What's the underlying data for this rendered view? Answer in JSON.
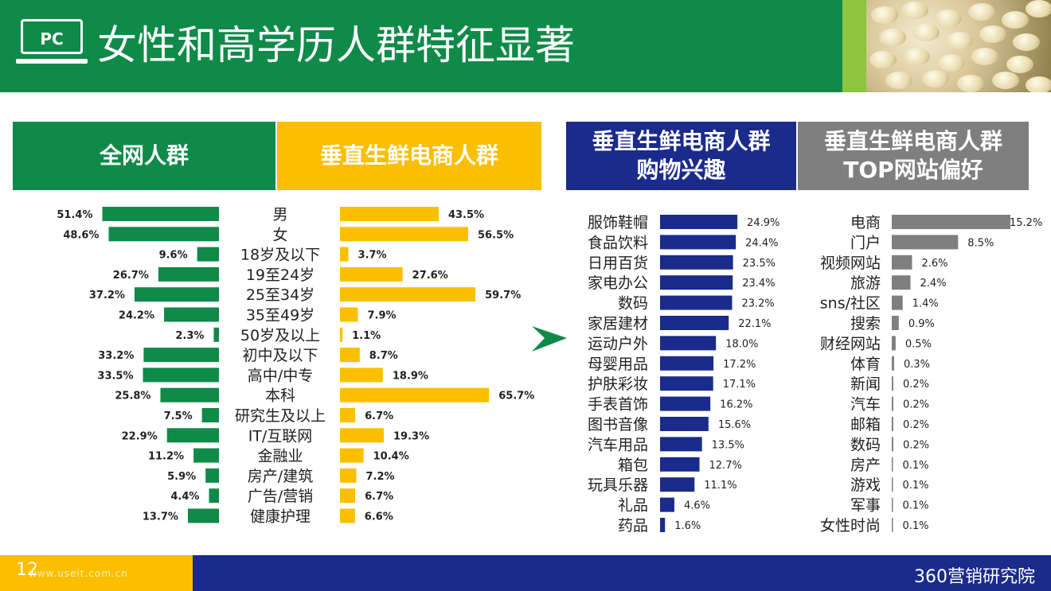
{
  "header": {
    "pc_label": "PC",
    "title": "女性和高学历人群特征显著"
  },
  "columns": {
    "all_net": "全网人群",
    "vertical_fresh": "垂直生鲜电商人群",
    "shopping_interest": "垂直生鲜电商人群\n购物兴趣",
    "top_sites": "垂直生鲜电商人群\nTOP网站偏好"
  },
  "colors": {
    "green": "#0f8a48",
    "yellow": "#fbbf00",
    "blue": "#1a2b8c",
    "gray": "#7f7f7f"
  },
  "chart_data": [
    {
      "type": "bar",
      "orientation": "horizontal",
      "categories": [
        "男",
        "女",
        "18岁及以下",
        "19至24岁",
        "25至34岁",
        "35至49岁",
        "50岁及以上",
        "初中及以下",
        "高中/中专",
        "本科",
        "研究生及以上",
        "IT/互联网",
        "金融业",
        "房产/建筑",
        "广告/营销",
        "健康护理"
      ],
      "series": [
        {
          "name": "全网人群",
          "values": [
            51.4,
            48.6,
            9.6,
            26.7,
            37.2,
            24.2,
            2.3,
            33.2,
            33.5,
            25.8,
            7.5,
            22.9,
            11.2,
            5.9,
            4.4,
            13.7
          ],
          "labels": [
            "51.4%",
            "48.6%",
            "9.6%",
            "26.7%",
            "37.2%",
            "24.2%",
            "2.3%",
            "33.2%",
            "33.5%",
            "25.8%",
            "7.5%",
            "22.9%",
            "11.2%",
            "5.9%",
            "4.4%",
            "13.7%"
          ]
        },
        {
          "name": "垂直生鲜电商人群",
          "values": [
            43.5,
            56.5,
            3.7,
            27.6,
            59.7,
            7.9,
            1.1,
            8.7,
            18.9,
            65.7,
            6.7,
            19.3,
            10.4,
            7.2,
            6.7,
            6.6
          ],
          "labels": [
            "43.5%",
            "56.5%",
            "3.7%",
            "27.6%",
            "59.7%",
            "7.9%",
            "1.1%",
            "8.7%",
            "18.9%",
            "65.7%",
            "6.7%",
            "19.3%",
            "10.4%",
            "7.2%",
            "6.7%",
            "6.6%"
          ]
        }
      ]
    },
    {
      "type": "bar",
      "orientation": "horizontal",
      "categories": [
        "服饰鞋帽",
        "食品饮料",
        "日用百货",
        "家电办公",
        "数码",
        "家居建材",
        "运动户外",
        "母婴用品",
        "护肤彩妆",
        "手表首饰",
        "图书音像",
        "汽车用品",
        "箱包",
        "玩具乐器",
        "礼品",
        "药品"
      ],
      "values": [
        24.9,
        24.4,
        23.5,
        23.4,
        23.2,
        22.1,
        18.0,
        17.2,
        17.1,
        16.2,
        15.6,
        13.5,
        12.7,
        11.1,
        4.6,
        1.6
      ],
      "labels": [
        "24.9%",
        "24.4%",
        "23.5%",
        "23.4%",
        "23.2%",
        "22.1%",
        "18.0%",
        "17.2%",
        "17.1%",
        "16.2%",
        "15.6%",
        "13.5%",
        "12.7%",
        "11.1%",
        "4.6%",
        "1.6%"
      ]
    },
    {
      "type": "bar",
      "orientation": "horizontal",
      "categories": [
        "电商",
        "门户",
        "视频网站",
        "旅游",
        "sns/社区",
        "搜索",
        "财经网站",
        "体育",
        "新闻",
        "汽车",
        "邮箱",
        "数码",
        "房产",
        "游戏",
        "军事",
        "女性时尚"
      ],
      "values": [
        15.2,
        8.5,
        2.6,
        2.4,
        1.4,
        0.9,
        0.5,
        0.3,
        0.2,
        0.2,
        0.2,
        0.2,
        0.1,
        0.1,
        0.1,
        0.1
      ],
      "labels": [
        "15.2%",
        "8.5%",
        "2.6%",
        "2.4%",
        "1.4%",
        "0.9%",
        "0.5%",
        "0.3%",
        "0.2%",
        "0.2%",
        "0.2%",
        "0.2%",
        "0.1%",
        "0.1%",
        "0.1%",
        "0.1%"
      ]
    }
  ],
  "footer": {
    "page": "12",
    "watermark": "www.useit.com.cn",
    "brand": "360营销研究院"
  }
}
